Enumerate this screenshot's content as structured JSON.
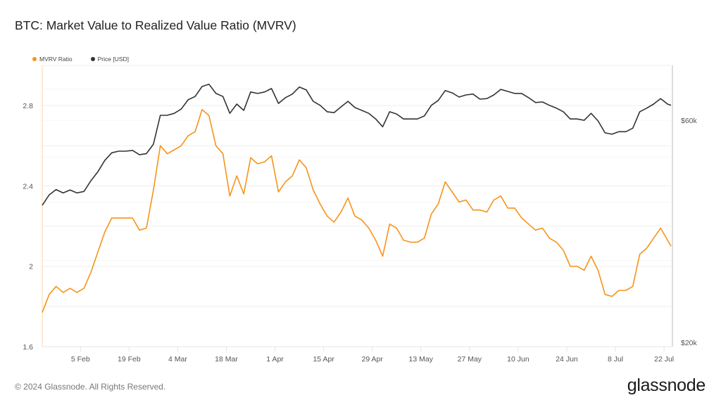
{
  "header": {
    "title": "BTC: Market Value to Realized Value Ratio (MVRV)"
  },
  "footer": {
    "copyright": "© 2024 Glassnode. All Rights Reserved.",
    "logo": "glassnode"
  },
  "colors": {
    "mvrv": "#f7931a",
    "price": "#333333",
    "grid": "#eeeeee"
  },
  "chart_data": {
    "type": "line",
    "title": "BTC: Market Value to Realized Value Ratio (MVRV)",
    "legend_position": "top-left",
    "grid": true,
    "x": [
      "2024-01-25",
      "2024-01-27",
      "2024-01-29",
      "2024-01-31",
      "2024-02-02",
      "2024-02-04",
      "2024-02-06",
      "2024-02-08",
      "2024-02-10",
      "2024-02-12",
      "2024-02-14",
      "2024-02-16",
      "2024-02-18",
      "2024-02-20",
      "2024-02-22",
      "2024-02-24",
      "2024-02-26",
      "2024-02-28",
      "2024-03-01",
      "2024-03-03",
      "2024-03-05",
      "2024-03-07",
      "2024-03-09",
      "2024-03-11",
      "2024-03-13",
      "2024-03-15",
      "2024-03-17",
      "2024-03-19",
      "2024-03-21",
      "2024-03-23",
      "2024-03-25",
      "2024-03-27",
      "2024-03-29",
      "2024-03-31",
      "2024-04-02",
      "2024-04-04",
      "2024-04-06",
      "2024-04-08",
      "2024-04-10",
      "2024-04-12",
      "2024-04-14",
      "2024-04-16",
      "2024-04-18",
      "2024-04-20",
      "2024-04-22",
      "2024-04-24",
      "2024-04-26",
      "2024-04-28",
      "2024-04-30",
      "2024-05-02",
      "2024-05-04",
      "2024-05-06",
      "2024-05-08",
      "2024-05-10",
      "2024-05-12",
      "2024-05-14",
      "2024-05-16",
      "2024-05-18",
      "2024-05-20",
      "2024-05-22",
      "2024-05-24",
      "2024-05-26",
      "2024-05-28",
      "2024-05-30",
      "2024-06-01",
      "2024-06-03",
      "2024-06-05",
      "2024-06-07",
      "2024-06-09",
      "2024-06-11",
      "2024-06-13",
      "2024-06-15",
      "2024-06-17",
      "2024-06-19",
      "2024-06-21",
      "2024-06-23",
      "2024-06-25",
      "2024-06-27",
      "2024-06-29",
      "2024-07-01",
      "2024-07-03",
      "2024-07-05",
      "2024-07-07",
      "2024-07-09",
      "2024-07-11",
      "2024-07-13",
      "2024-07-15",
      "2024-07-17",
      "2024-07-19",
      "2024-07-21",
      "2024-07-23",
      "2024-07-24"
    ],
    "x_ticks": [
      {
        "date": "2024-02-05",
        "label": "5 Feb"
      },
      {
        "date": "2024-02-19",
        "label": "19 Feb"
      },
      {
        "date": "2024-03-04",
        "label": "4 Mar"
      },
      {
        "date": "2024-03-18",
        "label": "18 Mar"
      },
      {
        "date": "2024-04-01",
        "label": "1 Apr"
      },
      {
        "date": "2024-04-15",
        "label": "15 Apr"
      },
      {
        "date": "2024-04-29",
        "label": "29 Apr"
      },
      {
        "date": "2024-05-13",
        "label": "13 May"
      },
      {
        "date": "2024-05-27",
        "label": "27 May"
      },
      {
        "date": "2024-06-10",
        "label": "10 Jun"
      },
      {
        "date": "2024-06-24",
        "label": "24 Jun"
      },
      {
        "date": "2024-07-08",
        "label": "8 Jul"
      },
      {
        "date": "2024-07-22",
        "label": "22 Jul"
      }
    ],
    "y_left": {
      "ylim": [
        1.6,
        3.0
      ],
      "scale": "linear",
      "ticks": [
        {
          "value": 1.6,
          "label": "1.6"
        },
        {
          "value": 2.0,
          "label": "2"
        },
        {
          "value": 2.4,
          "label": "2.4"
        },
        {
          "value": 2.8,
          "label": "2.8"
        }
      ]
    },
    "y_right": {
      "ylim": [
        19600,
        78700
      ],
      "scale": "log",
      "ticks": [
        {
          "value": 20000,
          "label": "$20k"
        },
        {
          "value": 60000,
          "label": "$60k"
        }
      ]
    },
    "series": [
      {
        "name": "MVRV Ratio",
        "axis": "left",
        "color": "#f7931a",
        "values": [
          1.77,
          1.86,
          1.9,
          1.87,
          1.89,
          1.87,
          1.89,
          1.97,
          2.07,
          2.17,
          2.24,
          2.24,
          2.24,
          2.24,
          2.18,
          2.19,
          2.38,
          2.6,
          2.56,
          2.58,
          2.6,
          2.65,
          2.67,
          2.78,
          2.75,
          2.6,
          2.56,
          2.35,
          2.45,
          2.36,
          2.54,
          2.51,
          2.52,
          2.55,
          2.37,
          2.42,
          2.45,
          2.53,
          2.49,
          2.38,
          2.31,
          2.25,
          2.22,
          2.27,
          2.34,
          2.25,
          2.23,
          2.19,
          2.13,
          2.05,
          2.21,
          2.19,
          2.13,
          2.12,
          2.12,
          2.14,
          2.26,
          2.31,
          2.42,
          2.37,
          2.32,
          2.33,
          2.28,
          2.28,
          2.27,
          2.33,
          2.35,
          2.29,
          2.29,
          2.24,
          2.21,
          2.18,
          2.19,
          2.14,
          2.12,
          2.08,
          2.0,
          2.0,
          1.98,
          2.05,
          1.98,
          1.86,
          1.85,
          1.88,
          1.88,
          1.9,
          2.06,
          2.09,
          2.14,
          2.19,
          2.13,
          2.1
        ]
      },
      {
        "name": "Price [USD]",
        "axis": "right",
        "color": "#333333",
        "values": [
          39400,
          41500,
          42600,
          41900,
          42500,
          41900,
          42200,
          44500,
          46500,
          49200,
          51100,
          51500,
          51500,
          51700,
          50600,
          50900,
          53300,
          61500,
          61500,
          62100,
          63400,
          66400,
          67500,
          70900,
          71700,
          68500,
          67500,
          62100,
          65000,
          63000,
          69000,
          68500,
          69000,
          70200,
          65200,
          67100,
          68300,
          70700,
          69700,
          65900,
          64600,
          62600,
          62300,
          64100,
          65900,
          63900,
          63000,
          62100,
          60400,
          58100,
          62600,
          61900,
          60400,
          60400,
          60400,
          61300,
          64600,
          66200,
          69500,
          68700,
          67300,
          68000,
          68300,
          66600,
          66800,
          68000,
          69900,
          69200,
          68500,
          68500,
          67100,
          65500,
          65700,
          64600,
          63700,
          62600,
          60400,
          60400,
          60000,
          62100,
          59800,
          56400,
          56000,
          56700,
          56700,
          57700,
          62600,
          63700,
          65000,
          66800,
          65000,
          64600
        ]
      }
    ]
  }
}
